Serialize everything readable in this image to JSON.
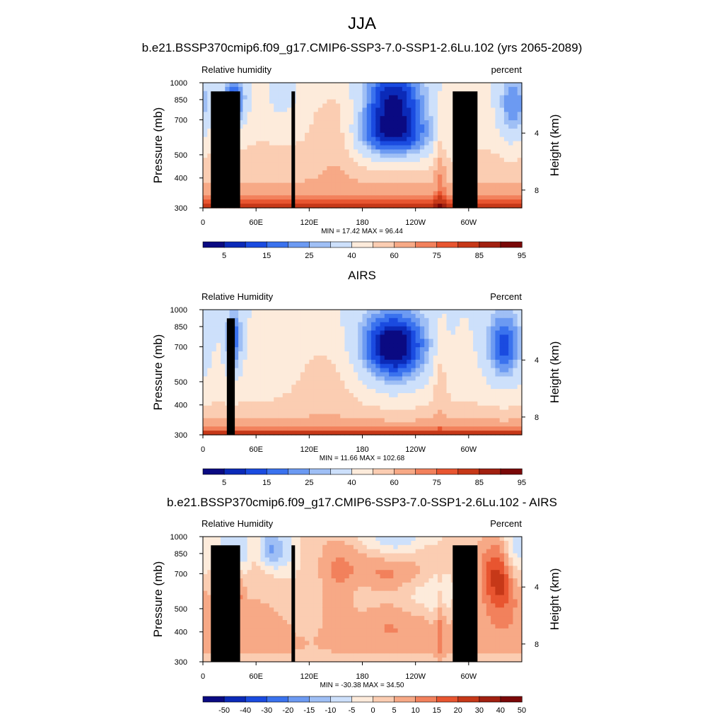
{
  "figure": {
    "main_title": "JJA",
    "panel_titles": [
      "b.e21.BSSP370cmip6.f09_g17.CMIP6-SSP3-7.0-SSP1-2.6Lu.102 (yrs 2065-2089)",
      "AIRS",
      "b.e21.BSSP370cmip6.f09_g17.CMIP6-SSP3-7.0-SSP1-2.6Lu.102 - AIRS"
    ]
  },
  "colors": {
    "abs_scale": [
      "#0a0a82",
      "#0b2ab8",
      "#1a4be0",
      "#3a72ee",
      "#6c9af2",
      "#9fbff5",
      "#cde0fb",
      "#fdebdb",
      "#fbcdb2",
      "#f7a986",
      "#f2815c",
      "#e85530",
      "#c63818",
      "#a12010",
      "#7a0808"
    ],
    "diff_scale": [
      "#0a0a82",
      "#0b2ab8",
      "#1a4be0",
      "#3a72ee",
      "#6c9af2",
      "#9fbff5",
      "#cde0fb",
      "#fdebdb",
      "#fbcdb2",
      "#f7a986",
      "#f2815c",
      "#e85530",
      "#c63818",
      "#a12010",
      "#7a0808"
    ]
  },
  "chart_data": [
    {
      "type": "heatmap",
      "title": "b.e21.BSSP370cmip6.f09_g17.CMIP6-SSP3-7.0-SSP1-2.6Lu.102 (yrs 2065-2089)",
      "left_label": "Relative humidity",
      "right_label": "percent",
      "ylabel": "Pressure (mb)",
      "y2label": "Height (km)",
      "x_ticks": [
        "0",
        "60E",
        "120E",
        "180",
        "120W",
        "60W"
      ],
      "y_ticks": [
        "300",
        "400",
        "500",
        "700",
        "850",
        "1000"
      ],
      "y2_ticks": [
        "8",
        "4"
      ],
      "stats": "MIN = 17.42 MAX = 96.44",
      "colorbar_labels": [
        "5",
        "15",
        "25",
        "40",
        "60",
        "75",
        "85",
        "95"
      ],
      "xlim": [
        0,
        360
      ],
      "ylim": [
        1000,
        300
      ],
      "min": 17.42,
      "max": 96.44
    },
    {
      "type": "heatmap",
      "title": "AIRS",
      "left_label": "Relative Humidity",
      "right_label": "Percent",
      "ylabel": "Pressure (mb)",
      "y2label": "Height (km)",
      "x_ticks": [
        "0",
        "60E",
        "120E",
        "180",
        "120W",
        "60W"
      ],
      "y_ticks": [
        "300",
        "400",
        "500",
        "700",
        "850",
        "1000"
      ],
      "y2_ticks": [
        "8",
        "4"
      ],
      "stats": "MIN = 11.66 MAX = 102.68",
      "colorbar_labels": [
        "5",
        "15",
        "25",
        "40",
        "60",
        "75",
        "85",
        "95"
      ],
      "xlim": [
        0,
        360
      ],
      "ylim": [
        1000,
        300
      ],
      "min": 11.66,
      "max": 102.68
    },
    {
      "type": "heatmap",
      "title": "b.e21.BSSP370cmip6.f09_g17.CMIP6-SSP3-7.0-SSP1-2.6Lu.102 - AIRS",
      "left_label": "Relative Humidity",
      "right_label": "Percent",
      "ylabel": "Pressure (mb)",
      "y2label": "Height (km)",
      "x_ticks": [
        "0",
        "60E",
        "120E",
        "180",
        "120W",
        "60W"
      ],
      "y_ticks": [
        "300",
        "400",
        "500",
        "700",
        "850",
        "1000"
      ],
      "y2_ticks": [
        "8",
        "4"
      ],
      "stats": "MIN = -30.38 MAX = 34.50",
      "colorbar_labels": [
        "-50",
        "-40",
        "-30",
        "-20",
        "-15",
        "-10",
        "-5",
        "0",
        "5",
        "10",
        "15",
        "20",
        "30",
        "40",
        "50"
      ],
      "xlim": [
        0,
        360
      ],
      "ylim": [
        1000,
        300
      ],
      "min": -30.38,
      "max": 34.5
    }
  ]
}
